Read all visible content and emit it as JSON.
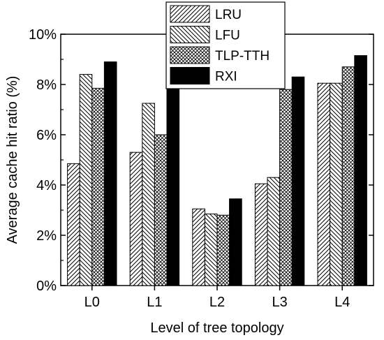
{
  "chart_data": {
    "type": "bar",
    "xlabel": "Level of tree topology",
    "ylabel": "Average cache hit ratio (%)",
    "categories": [
      "L0",
      "L1",
      "L2",
      "L3",
      "L4"
    ],
    "ylim": [
      0,
      10
    ],
    "yticks": [
      0,
      2,
      4,
      6,
      8,
      10
    ],
    "ytick_suffix": "%",
    "grid": false,
    "legend_position": "top-center",
    "series": [
      {
        "name": "LRU",
        "pattern": "diagonal-hatch",
        "values": [
          4.85,
          5.3,
          3.05,
          4.05,
          8.05
        ]
      },
      {
        "name": "LFU",
        "pattern": "reverse-hatch",
        "values": [
          8.4,
          7.25,
          2.85,
          4.3,
          8.05
        ]
      },
      {
        "name": "TLP-TTH",
        "pattern": "cross-hatch",
        "values": [
          7.85,
          6.0,
          2.8,
          7.8,
          8.7
        ]
      },
      {
        "name": "RXI",
        "pattern": "solid",
        "values": [
          8.9,
          7.85,
          3.45,
          8.3,
          9.15
        ]
      }
    ],
    "colors": {
      "stroke": "#000000",
      "fill_solid": "#000000",
      "background": "#ffffff"
    }
  }
}
